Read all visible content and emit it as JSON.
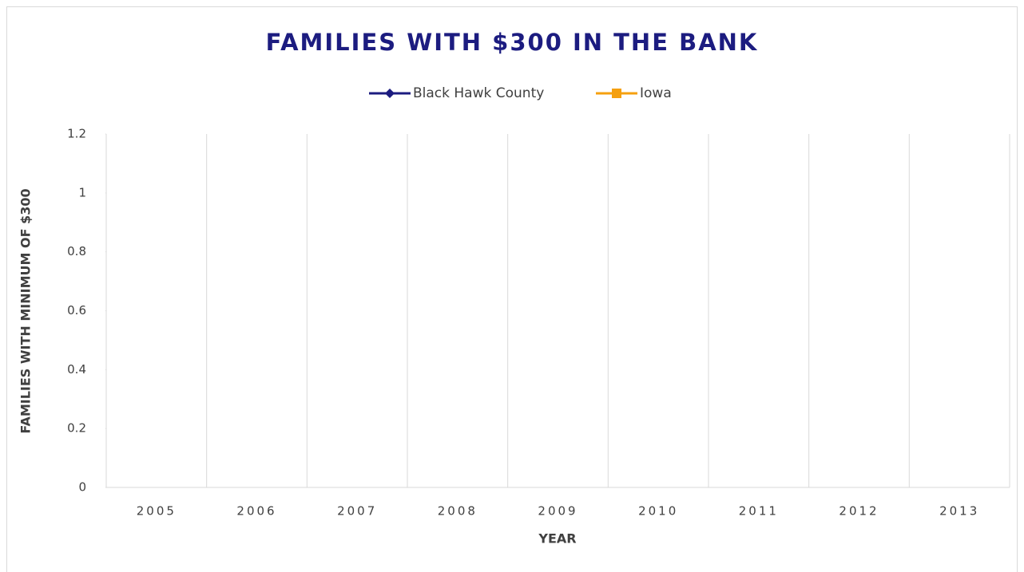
{
  "chart_data": {
    "type": "line",
    "title": "FAMILIES WITH $300 IN THE BANK",
    "x_label": "YEAR",
    "y_label": "FAMILIES WITH MINIMUM OF $300",
    "categories": [
      "2005",
      "2006",
      "2007",
      "2008",
      "2009",
      "2010",
      "2011",
      "2012",
      "2013"
    ],
    "series": [
      {
        "name": "Black Hawk County",
        "color": "#1c1c80",
        "marker": "diamond",
        "values": [
          null,
          null,
          null,
          null,
          null,
          null,
          null,
          null,
          null
        ]
      },
      {
        "name": "Iowa",
        "color": "#f5a00f",
        "marker": "square",
        "values": [
          null,
          null,
          null,
          null,
          null,
          null,
          null,
          null,
          null
        ]
      }
    ],
    "ylim": [
      0,
      1.2
    ],
    "yticks": [
      0,
      0.2,
      0.4,
      0.6,
      0.8,
      1,
      1.2
    ],
    "legend": "top"
  }
}
